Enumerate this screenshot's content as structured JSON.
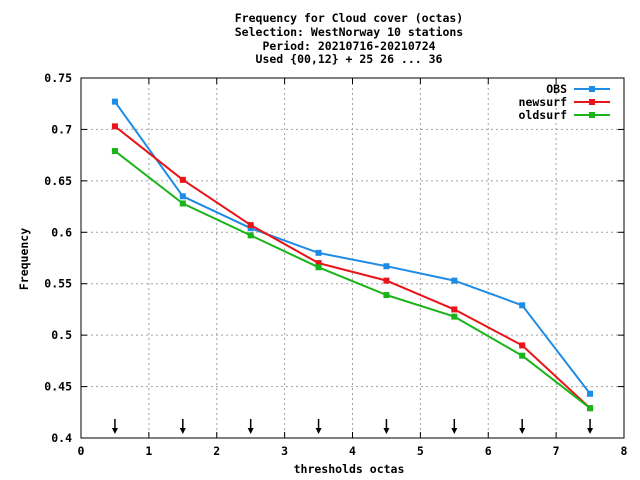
{
  "chart_data": {
    "type": "line",
    "title_lines": [
      "Frequency  for Cloud cover (octas)",
      "Selection: WestNorway     10 stations",
      "Period: 20210716-20210724",
      "Used {00,12} + 25 26 ... 36"
    ],
    "xlabel": "thresholds octas",
    "ylabel": "Frequency",
    "xlim": [
      0,
      8
    ],
    "ylim": [
      0.4,
      0.75
    ],
    "xticks": [
      0,
      1,
      2,
      3,
      4,
      5,
      6,
      7,
      8
    ],
    "xtick_labels": [
      "0",
      "1",
      "2",
      "3",
      "4",
      "5",
      "6",
      "7",
      "8"
    ],
    "yticks": [
      0.4,
      0.45,
      0.5,
      0.55,
      0.6,
      0.65,
      0.7,
      0.75
    ],
    "ytick_labels": [
      "0.4",
      "0.45",
      "0.5",
      "0.55",
      "0.6",
      "0.65",
      "0.7",
      "0.75"
    ],
    "grid": true,
    "legend_position": "top-right",
    "x": [
      0.5,
      1.5,
      2.5,
      3.5,
      4.5,
      5.5,
      6.5,
      7.5
    ],
    "series": [
      {
        "name": "OBS",
        "color": "#1e8ce6",
        "values": [
          0.727,
          0.635,
          0.604,
          0.58,
          0.567,
          0.553,
          0.529,
          0.443
        ]
      },
      {
        "name": "newsurf",
        "color": "#e8141a",
        "values": [
          0.703,
          0.651,
          0.607,
          0.57,
          0.553,
          0.525,
          0.49,
          0.429
        ]
      },
      {
        "name": "oldsurf",
        "color": "#18b418",
        "values": [
          0.679,
          0.628,
          0.597,
          0.566,
          0.539,
          0.518,
          0.48,
          0.429
        ]
      }
    ],
    "arrow_markers_x": [
      0.5,
      1.5,
      2.5,
      3.5,
      4.5,
      5.5,
      6.5,
      7.5
    ]
  }
}
